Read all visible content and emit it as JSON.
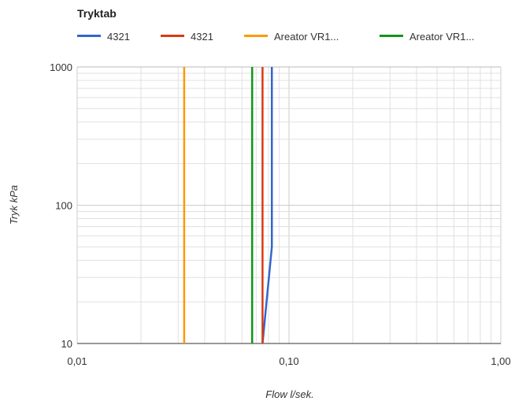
{
  "chart_data": {
    "type": "line",
    "title": "Tryktab",
    "xlabel": "Flow l/sek.",
    "ylabel": "Tryk kPa",
    "x_scale": "log",
    "y_scale": "log",
    "xlim": [
      0.01,
      1.0
    ],
    "ylim": [
      10,
      1000
    ],
    "x_ticks": [
      {
        "value": 0.01,
        "label": "0,01"
      },
      {
        "value": 0.1,
        "label": "0,10"
      },
      {
        "value": 1.0,
        "label": "1,00"
      }
    ],
    "y_ticks": [
      {
        "value": 10,
        "label": "10"
      },
      {
        "value": 100,
        "label": "100"
      },
      {
        "value": 1000,
        "label": "1000"
      }
    ],
    "grid": true,
    "legend_position": "top-left",
    "series": [
      {
        "name": "4321",
        "color": "#3366cc",
        "points": [
          [
            0.075,
            10
          ],
          [
            0.083,
            50
          ],
          [
            0.083,
            1000
          ]
        ]
      },
      {
        "name": "4321",
        "color": "#dc3912",
        "points": [
          [
            0.075,
            10
          ],
          [
            0.075,
            1000
          ]
        ]
      },
      {
        "name": "Areator VR1...",
        "color": "#ff9900",
        "points": [
          [
            0.032,
            10
          ],
          [
            0.032,
            1000
          ]
        ]
      },
      {
        "name": "Areator VR1...",
        "color": "#109618",
        "points": [
          [
            0.067,
            10
          ],
          [
            0.067,
            1000
          ]
        ]
      }
    ]
  }
}
